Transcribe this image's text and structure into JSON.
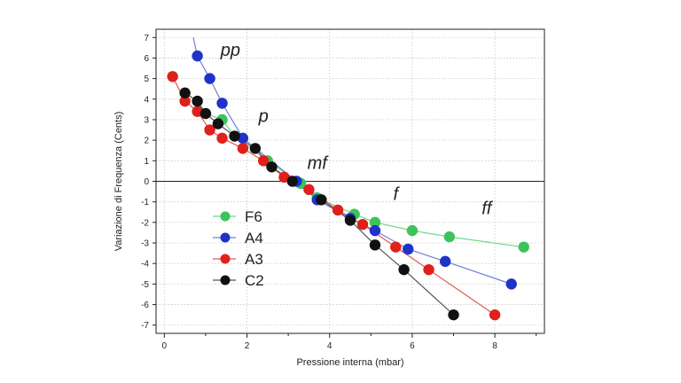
{
  "chart_data": {
    "type": "scatter",
    "xlabel": "Pressione interna (mbar)",
    "ylabel": "Variazione di Frequenza (Cents)",
    "xlim": [
      -0.2,
      9.2
    ],
    "ylim": [
      -7.4,
      7.4
    ],
    "x_ticks": [
      0,
      2,
      4,
      6,
      8
    ],
    "y_ticks": [
      -7,
      -6,
      -5,
      -4,
      -3,
      -2,
      -1,
      0,
      1,
      2,
      3,
      4,
      5,
      6,
      7
    ],
    "grid": true,
    "legend_position": "lower-left",
    "series": [
      {
        "name": "F6",
        "color": "#3cc35a",
        "line_color": "#6fd882",
        "points": [
          [
            1.0,
            3.3
          ],
          [
            1.4,
            3.0
          ],
          [
            1.7,
            2.2
          ],
          [
            2.5,
            1.0
          ],
          [
            3.3,
            -0.1
          ],
          [
            3.7,
            -0.8
          ],
          [
            4.6,
            -1.6
          ],
          [
            5.1,
            -2.0
          ],
          [
            6.0,
            -2.4
          ],
          [
            6.9,
            -2.7
          ],
          [
            8.7,
            -3.2
          ]
        ]
      },
      {
        "name": "A4",
        "color": "#1f33c8",
        "line_color": "#6f7fd6",
        "line_start": [
          0.7,
          7.0
        ],
        "points": [
          [
            0.8,
            6.1
          ],
          [
            1.1,
            5.0
          ],
          [
            1.4,
            3.8
          ],
          [
            1.9,
            2.1
          ],
          [
            3.2,
            0.0
          ],
          [
            3.7,
            -0.9
          ],
          [
            4.5,
            -1.8
          ],
          [
            5.1,
            -2.4
          ],
          [
            5.9,
            -3.3
          ],
          [
            6.8,
            -3.9
          ],
          [
            8.4,
            -5.0
          ]
        ]
      },
      {
        "name": "A3",
        "color": "#e0201b",
        "line_color": "#e05a55",
        "points": [
          [
            0.2,
            5.1
          ],
          [
            0.5,
            3.9
          ],
          [
            0.8,
            3.4
          ],
          [
            1.1,
            2.5
          ],
          [
            1.4,
            2.1
          ],
          [
            1.9,
            1.6
          ],
          [
            2.4,
            1.0
          ],
          [
            2.9,
            0.2
          ],
          [
            3.5,
            -0.4
          ],
          [
            4.2,
            -1.4
          ],
          [
            4.8,
            -2.1
          ],
          [
            5.6,
            -3.2
          ],
          [
            6.4,
            -4.3
          ],
          [
            8.0,
            -6.5
          ]
        ]
      },
      {
        "name": "C2",
        "color": "#111111",
        "line_color": "#555555",
        "points": [
          [
            0.5,
            4.3
          ],
          [
            0.8,
            3.9
          ],
          [
            1.0,
            3.3
          ],
          [
            1.3,
            2.8
          ],
          [
            1.7,
            2.2
          ],
          [
            2.2,
            1.6
          ],
          [
            2.6,
            0.7
          ],
          [
            3.1,
            0.0
          ],
          [
            3.8,
            -0.9
          ],
          [
            4.5,
            -1.9
          ],
          [
            5.1,
            -3.1
          ],
          [
            5.8,
            -4.3
          ],
          [
            7.0,
            -6.5
          ]
        ]
      }
    ],
    "annotations": [
      {
        "text": "pp",
        "x": 1.6,
        "y": 6.1
      },
      {
        "text": "p",
        "x": 2.4,
        "y": 2.9
      },
      {
        "text": "mf",
        "x": 3.7,
        "y": 0.6
      },
      {
        "text": "f",
        "x": 5.6,
        "y": -0.9
      },
      {
        "text": "ff",
        "x": 7.8,
        "y": -1.6
      }
    ]
  }
}
